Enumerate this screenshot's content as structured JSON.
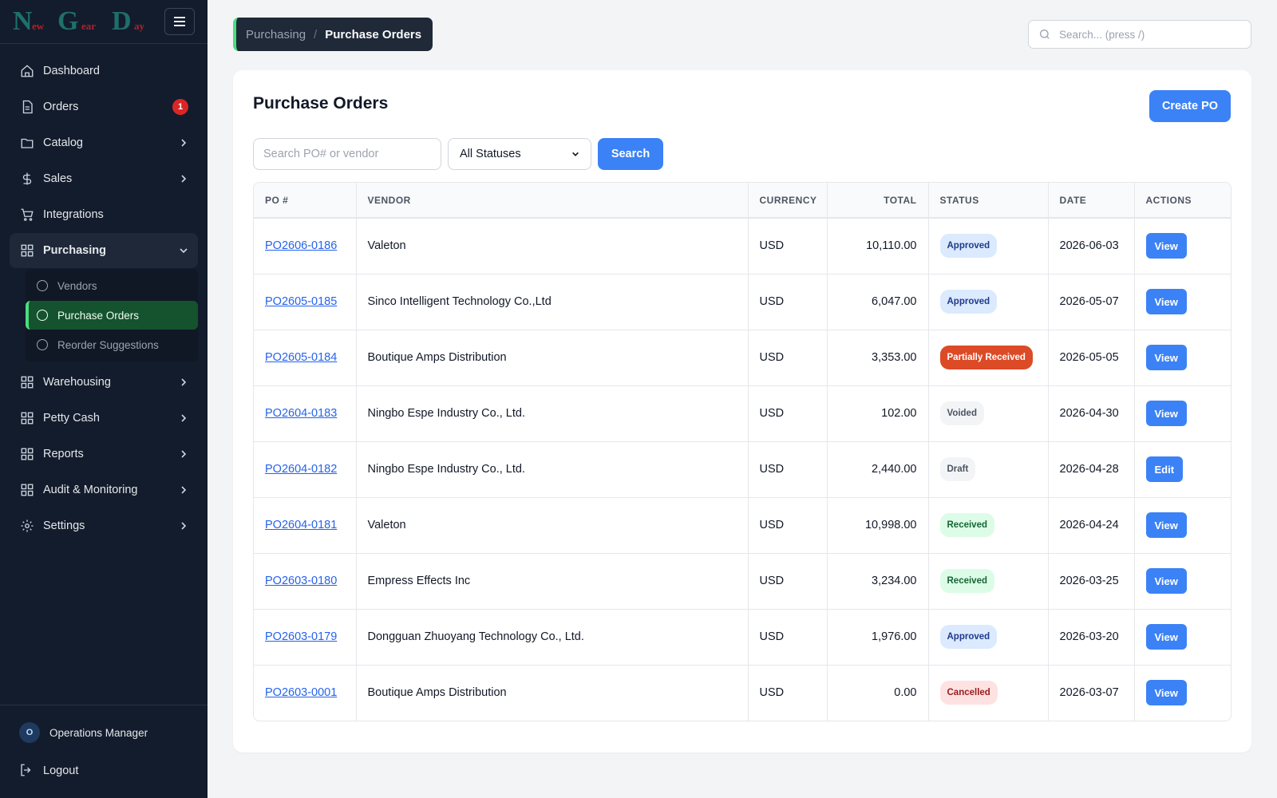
{
  "brand": {
    "logo_letters": [
      "N",
      "ew",
      "G",
      "ear",
      "D",
      "ay"
    ],
    "colors": {
      "logo_big": "#1f6f6b",
      "logo_small": "#b3202a"
    }
  },
  "sidebar": {
    "items": [
      {
        "label": "Dashboard",
        "icon": "home-icon"
      },
      {
        "label": "Orders",
        "icon": "document-icon",
        "badge": "1"
      },
      {
        "label": "Catalog",
        "icon": "folder-icon",
        "chevron": "right"
      },
      {
        "label": "Sales",
        "icon": "dollar-icon",
        "chevron": "right"
      },
      {
        "label": "Integrations",
        "icon": "cart-icon"
      },
      {
        "label": "Purchasing",
        "icon": "grid-icon",
        "chevron": "down"
      },
      {
        "label": "Warehousing",
        "icon": "grid-icon",
        "chevron": "right"
      },
      {
        "label": "Petty Cash",
        "icon": "grid-icon",
        "chevron": "right"
      },
      {
        "label": "Reports",
        "icon": "grid-icon",
        "chevron": "right"
      },
      {
        "label": "Audit & Monitoring",
        "icon": "grid-icon",
        "chevron": "right"
      },
      {
        "label": "Settings",
        "icon": "gear-icon",
        "chevron": "right"
      }
    ],
    "purchasing_sub": [
      {
        "label": "Vendors"
      },
      {
        "label": "Purchase Orders",
        "active": true
      },
      {
        "label": "Reorder Suggestions"
      }
    ],
    "user": {
      "initial": "O",
      "name": "Operations Manager"
    },
    "logout": "Logout"
  },
  "breadcrumb": {
    "parent": "Purchasing",
    "separator": "/",
    "current": "Purchase Orders"
  },
  "global_search": {
    "placeholder": "Search... (press /)"
  },
  "page": {
    "title": "Purchase Orders",
    "create_button": "Create PO",
    "filter_placeholder": "Search PO# or vendor",
    "status_select": "All Statuses",
    "search_button": "Search"
  },
  "table": {
    "headers": [
      "PO #",
      "VENDOR",
      "CURRENCY",
      "TOTAL",
      "STATUS",
      "DATE",
      "ACTIONS"
    ],
    "rows": [
      {
        "po": "PO2606-0186",
        "vendor": "Valeton",
        "currency": "USD",
        "total": "10,110.00",
        "status": "Approved",
        "date": "2026-06-03",
        "action": "View"
      },
      {
        "po": "PO2605-0185",
        "vendor": "Sinco Intelligent Technology Co.,Ltd",
        "currency": "USD",
        "total": "6,047.00",
        "status": "Approved",
        "date": "2026-05-07",
        "action": "View"
      },
      {
        "po": "PO2605-0184",
        "vendor": "Boutique Amps Distribution",
        "currency": "USD",
        "total": "3,353.00",
        "status": "Partially Received",
        "date": "2026-05-05",
        "action": "View"
      },
      {
        "po": "PO2604-0183",
        "vendor": "Ningbo Espe Industry Co., Ltd.",
        "currency": "USD",
        "total": "102.00",
        "status": "Voided",
        "date": "2026-04-30",
        "action": "View"
      },
      {
        "po": "PO2604-0182",
        "vendor": "Ningbo Espe Industry Co., Ltd.",
        "currency": "USD",
        "total": "2,440.00",
        "status": "Draft",
        "date": "2026-04-28",
        "action": "Edit"
      },
      {
        "po": "PO2604-0181",
        "vendor": "Valeton",
        "currency": "USD",
        "total": "10,998.00",
        "status": "Received",
        "date": "2026-04-24",
        "action": "View"
      },
      {
        "po": "PO2603-0180",
        "vendor": "Empress Effects Inc",
        "currency": "USD",
        "total": "3,234.00",
        "status": "Received",
        "date": "2026-03-25",
        "action": "View"
      },
      {
        "po": "PO2603-0179",
        "vendor": "Dongguan Zhuoyang Technology Co., Ltd.",
        "currency": "USD",
        "total": "1,976.00",
        "status": "Approved",
        "date": "2026-03-20",
        "action": "View"
      },
      {
        "po": "PO2603-0001",
        "vendor": "Boutique Amps Distribution",
        "currency": "USD",
        "total": "0.00",
        "status": "Cancelled",
        "date": "2026-03-07",
        "action": "View"
      }
    ]
  },
  "colors": {
    "sidebar_bg": "#131c2c",
    "accent_green": "#4ade80",
    "active_bg": "#14532d",
    "primary": "#3b82f6",
    "link": "#2563eb",
    "badge_red": "#dc2626"
  }
}
